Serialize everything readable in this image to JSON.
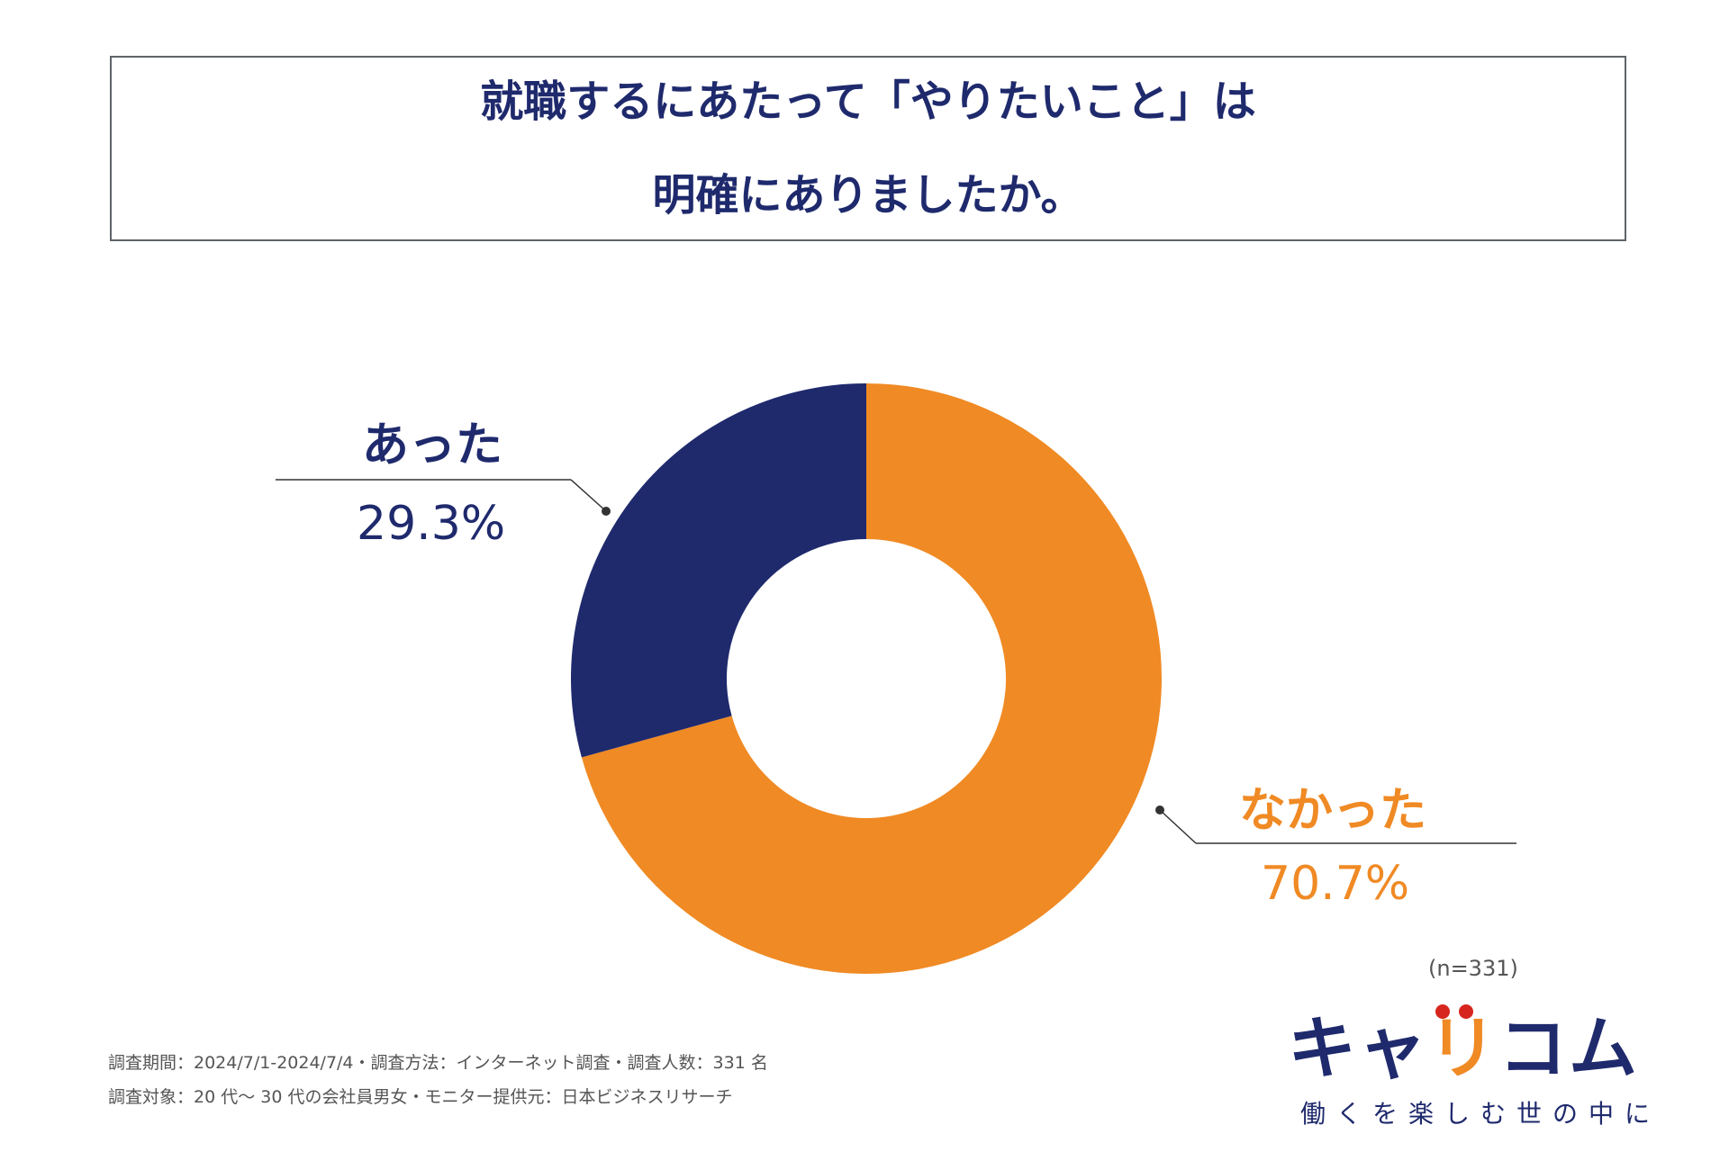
{
  "title": {
    "line1": "就職するにあたって「やりたいこと」は",
    "line2": "明確にありましたか。"
  },
  "colors": {
    "navy": "#1f2a6d",
    "orange": "#f08a24",
    "leader": "#333333"
  },
  "chart_data": {
    "type": "pie",
    "donut": true,
    "categories": [
      "あった",
      "なかった"
    ],
    "values": [
      29.3,
      70.7
    ],
    "value_labels": [
      "29.3%",
      "70.7%"
    ],
    "colors": [
      "#1f2a6d",
      "#f08a24"
    ]
  },
  "sample_size": "(n=331)",
  "footnotes": {
    "line1": "調査期間：2024/7/1-2024/7/4・調査方法：インターネット調査・調査人数：331 名",
    "line2": "調査対象：20 代〜 30 代の会社員男女・モニター提供元：日本ビジネスリサーチ"
  },
  "logo": {
    "part1": "キャ",
    "part2": "リ",
    "part3": "コム",
    "tagline": "働くを楽しむ世の中に"
  }
}
